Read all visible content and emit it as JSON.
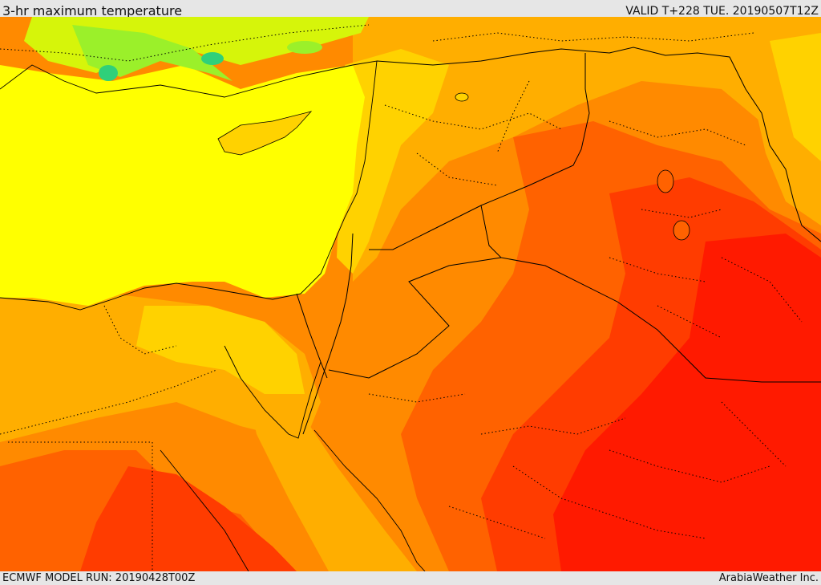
{
  "header": {
    "title": "3-hr maximum temperature",
    "valid": "VALID T+228 TUE. 20190507T12Z"
  },
  "footer": {
    "model_run": "ECMWF MODEL RUN: 20190428T00Z",
    "credit": "ArabiaWeather Inc."
  },
  "palette": {
    "cool_green": "#2fd07a",
    "light_green": "#9bf02a",
    "lime": "#d6f50a",
    "yellow": "#ffff00",
    "gold": "#ffd200",
    "amber": "#ffae00",
    "orange": "#ff8a00",
    "dark_orange": "#ff6200",
    "red_orange": "#ff3c00",
    "red": "#ff1a00",
    "land_line": "#000000"
  }
}
